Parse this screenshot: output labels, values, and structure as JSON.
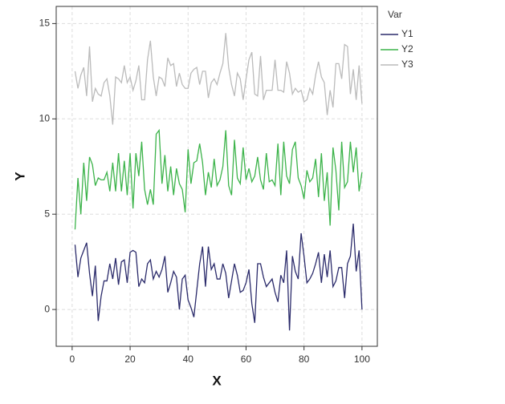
{
  "chart_data": {
    "type": "line",
    "x_label": "X",
    "y_label": "Y",
    "legend_title": "Var",
    "legend": "right",
    "grid": true,
    "x": [
      1,
      2,
      3,
      4,
      5,
      6,
      7,
      8,
      9,
      10,
      11,
      12,
      13,
      14,
      15,
      16,
      17,
      18,
      19,
      20,
      21,
      22,
      23,
      24,
      25,
      26,
      27,
      28,
      29,
      30,
      31,
      32,
      33,
      34,
      35,
      36,
      37,
      38,
      39,
      40,
      41,
      42,
      43,
      44,
      45,
      46,
      47,
      48,
      49,
      50,
      51,
      52,
      53,
      54,
      55,
      56,
      57,
      58,
      59,
      60,
      61,
      62,
      63,
      64,
      65,
      66,
      67,
      68,
      69,
      70,
      71,
      72,
      73,
      74,
      75,
      76,
      77,
      78,
      79,
      80,
      81,
      82,
      83,
      84,
      85,
      86,
      87,
      88,
      89,
      90,
      91,
      92,
      93,
      94,
      95,
      96,
      97,
      98,
      99,
      100
    ],
    "xlim": [
      -5.5,
      105.3
    ],
    "xticks": [
      0,
      20,
      40,
      60,
      80,
      100
    ],
    "ylim": [
      -1.93,
      15.9
    ],
    "yticks": [
      0,
      5,
      10,
      15
    ],
    "series": [
      {
        "name": "Y1",
        "color": "#2b2b6b",
        "values": [
          3.4,
          1.7,
          2.7,
          3.1,
          3.5,
          1.9,
          0.7,
          2.3,
          -0.6,
          0.7,
          1.5,
          1.5,
          2.4,
          1.6,
          2.7,
          1.3,
          2.5,
          2.6,
          1.4,
          3.0,
          3.1,
          3.0,
          1.2,
          1.6,
          1.4,
          2.4,
          2.6,
          1.6,
          2.0,
          1.7,
          2.1,
          2.8,
          0.9,
          1.4,
          2.0,
          1.7,
          0.0,
          1.6,
          1.8,
          0.5,
          0.1,
          -0.4,
          1.0,
          2.4,
          3.3,
          1.2,
          3.3,
          2.1,
          2.4,
          1.6,
          1.6,
          2.4,
          1.9,
          0.6,
          1.5,
          2.4,
          1.8,
          0.9,
          1.0,
          1.4,
          2.1,
          0.3,
          -0.7,
          2.4,
          2.4,
          1.7,
          1.2,
          1.4,
          1.6,
          0.9,
          0.4,
          1.8,
          1.4,
          3.1,
          -1.1,
          2.8,
          2.0,
          1.6,
          4.0,
          2.8,
          1.4,
          1.6,
          1.9,
          2.4,
          3.0,
          1.4,
          2.9,
          1.7,
          3.1,
          1.2,
          1.5,
          2.2,
          2.2,
          0.6,
          2.4,
          2.8,
          4.5,
          2.0,
          3.1,
          0.0
        ]
      },
      {
        "name": "Y2",
        "color": "#3cb34a",
        "values": [
          4.2,
          6.9,
          5.0,
          7.7,
          5.7,
          8.0,
          7.6,
          6.5,
          6.9,
          6.8,
          6.8,
          7.2,
          6.2,
          7.7,
          6.2,
          8.2,
          6.2,
          7.8,
          6.0,
          8.2,
          5.3,
          8.2,
          7.0,
          8.8,
          6.3,
          5.5,
          6.3,
          5.5,
          9.2,
          9.4,
          6.6,
          8.1,
          6.2,
          7.5,
          6.0,
          7.4,
          6.6,
          6.3,
          5.1,
          8.4,
          6.6,
          7.7,
          7.8,
          8.7,
          7.7,
          6.0,
          7.2,
          6.4,
          7.9,
          6.5,
          6.8,
          7.5,
          9.4,
          6.5,
          6.0,
          8.9,
          6.9,
          6.6,
          8.5,
          6.8,
          7.4,
          6.7,
          7.0,
          8.0,
          6.8,
          6.3,
          8.2,
          6.7,
          6.8,
          6.5,
          8.7,
          6.0,
          8.8,
          7.0,
          6.6,
          8.4,
          8.8,
          6.9,
          6.5,
          5.8,
          7.3,
          6.7,
          6.9,
          7.9,
          5.9,
          8.2,
          5.7,
          7.2,
          4.4,
          8.5,
          7.3,
          5.2,
          8.8,
          6.4,
          6.7,
          8.8,
          7.2,
          8.5,
          6.2,
          7.2
        ]
      },
      {
        "name": "Y3",
        "color": "#bbbbbb",
        "values": [
          12.5,
          11.6,
          12.3,
          12.7,
          11.2,
          13.8,
          10.9,
          11.6,
          11.3,
          11.2,
          11.9,
          12.1,
          11.2,
          9.7,
          12.2,
          12.1,
          11.9,
          12.8,
          11.9,
          12.2,
          11.5,
          12.0,
          12.8,
          11.0,
          11.0,
          13.1,
          14.1,
          12.2,
          11.2,
          12.2,
          12.1,
          11.7,
          13.2,
          12.8,
          12.9,
          11.7,
          12.4,
          11.8,
          11.6,
          11.6,
          12.4,
          12.6,
          12.7,
          11.8,
          12.5,
          12.5,
          11.1,
          11.9,
          12.1,
          11.8,
          12.4,
          12.9,
          14.5,
          12.7,
          11.8,
          11.2,
          12.4,
          12.1,
          11.0,
          12.1,
          13.1,
          13.5,
          11.3,
          11.2,
          13.3,
          11.0,
          11.5,
          11.5,
          11.5,
          13.1,
          11.5,
          11.5,
          11.4,
          13.0,
          12.4,
          11.3,
          11.6,
          11.4,
          11.5,
          10.9,
          11.0,
          11.6,
          11.3,
          12.3,
          13.0,
          12.2,
          11.9,
          10.2,
          11.5,
          10.6,
          12.9,
          12.9,
          12.1,
          13.9,
          13.8,
          11.3,
          12.6,
          11.0,
          12.8,
          10.8
        ]
      }
    ]
  }
}
